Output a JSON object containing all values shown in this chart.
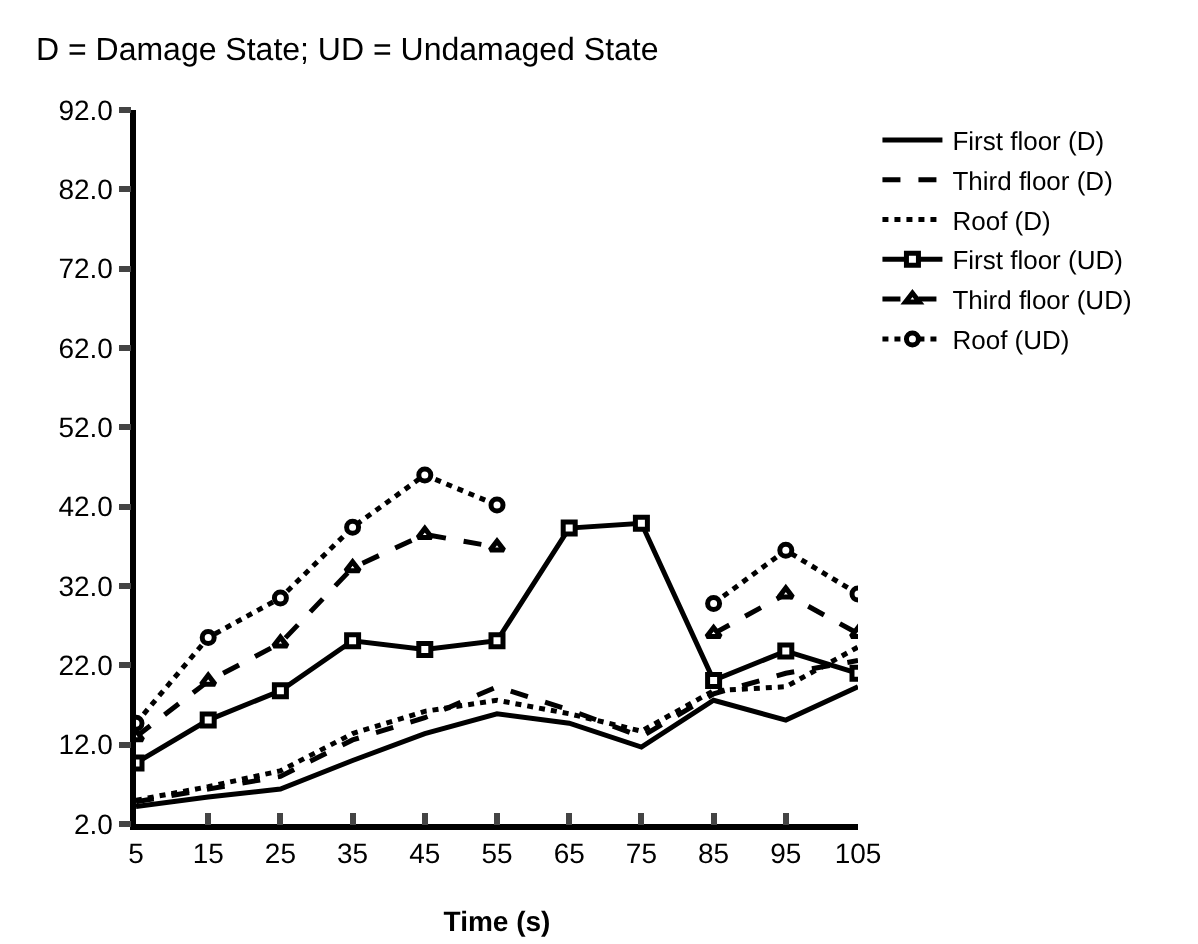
{
  "chart_data": {
    "type": "line",
    "title": "D = Damage State; UD = Undamaged State",
    "xlabel": "Time (s)",
    "x": [
      5,
      15,
      25,
      35,
      45,
      55,
      65,
      75,
      85,
      95,
      105
    ],
    "xlim": [
      5,
      105
    ],
    "xticks": [
      5,
      15,
      25,
      35,
      45,
      55,
      65,
      75,
      85,
      95,
      105
    ],
    "ylim": [
      2,
      92
    ],
    "yticks": [
      {
        "value": 2,
        "label": "2.0"
      },
      {
        "value": 12,
        "label": "12.0"
      },
      {
        "value": 22,
        "label": "22.0"
      },
      {
        "value": 32,
        "label": "32.0"
      },
      {
        "value": 42,
        "label": "42.0"
      },
      {
        "value": 52,
        "label": "52.0"
      },
      {
        "value": 62,
        "label": "62.0"
      },
      {
        "value": 72,
        "label": "72.0"
      },
      {
        "value": 82,
        "label": "82.0"
      },
      {
        "value": 92,
        "label": "92.0"
      }
    ],
    "grid": false,
    "legend": "right",
    "series": [
      {
        "name": "First floor (D)",
        "color": "#000000",
        "marker": "none",
        "line_style": "solid",
        "values": [
          4.2,
          5.4,
          6.4,
          10,
          13.4,
          15.9,
          14.7,
          11.7,
          17.6,
          15.1,
          19.3
        ]
      },
      {
        "name": "Third floor (D)",
        "color": "#000000",
        "marker": "none",
        "line_style": "dashed",
        "values": [
          4.8,
          6.4,
          8,
          12.6,
          15.4,
          19.3,
          16.4,
          13,
          18.4,
          21,
          22.6
        ]
      },
      {
        "name": "Roof (D)",
        "color": "#000000",
        "marker": "none",
        "line_style": "dotted",
        "values": [
          5,
          6.7,
          8.7,
          13.4,
          16.2,
          17.6,
          15.9,
          13.7,
          18.8,
          19.3,
          24.3
        ]
      },
      {
        "name": "First floor (UD)",
        "color": "#000000",
        "marker": "square",
        "line_style": "solid",
        "values": [
          9.7,
          15.1,
          18.8,
          25.1,
          24,
          25.1,
          39.3,
          39.9,
          20.1,
          23.8,
          21
        ]
      },
      {
        "name": "Third floor (UD)",
        "color": "#000000",
        "marker": "triangle",
        "line_style": "dashed",
        "values": [
          13,
          20,
          24.8,
          34.3,
          38.5,
          36.9,
          null,
          null,
          26,
          31,
          26
        ]
      },
      {
        "name": "Roof (UD)",
        "color": "#000000",
        "marker": "circle",
        "line_style": "dotted",
        "values": [
          14.7,
          25.5,
          30.5,
          39.4,
          46,
          42.2,
          null,
          null,
          29.8,
          36.5,
          31
        ]
      }
    ]
  }
}
